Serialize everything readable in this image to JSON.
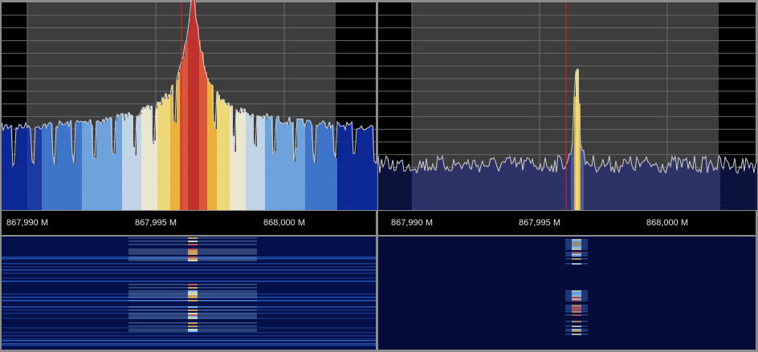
{
  "panels": [
    {
      "frequency_labels": [
        "867,990 M",
        "867,995 M",
        "868,000 M"
      ]
    },
    {
      "frequency_labels": [
        "867,990 M",
        "867,995 M",
        "868,000 M"
      ]
    }
  ]
}
